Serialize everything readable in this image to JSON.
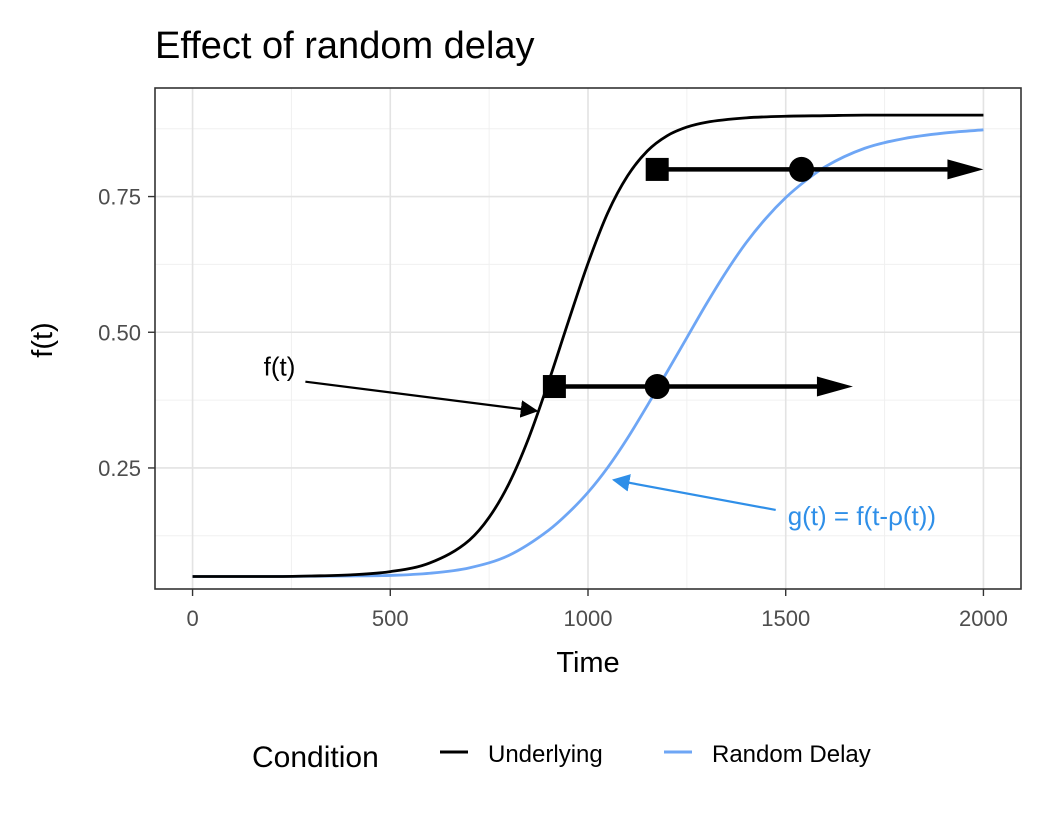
{
  "chart_data": {
    "type": "line",
    "title": "Effect of random delay",
    "xlabel": "Time",
    "ylabel": "f(t)",
    "xlim": [
      -95,
      2095
    ],
    "ylim": [
      0.027,
      0.95
    ],
    "x_ticks": [
      0,
      500,
      1000,
      1500,
      2000
    ],
    "x_tick_labels": [
      "0",
      "500",
      "1000",
      "1500",
      "2000"
    ],
    "y_ticks": [
      0.25,
      0.5,
      0.75
    ],
    "y_tick_labels": [
      "0.25",
      "0.50",
      "0.75"
    ],
    "grid": true,
    "legend": {
      "title": "Condition",
      "position": "bottom",
      "entries": [
        {
          "label": "Underlying",
          "color": "#000000"
        },
        {
          "label": "Random Delay",
          "color": "#6ea6f5"
        }
      ]
    },
    "series": [
      {
        "name": "Underlying",
        "color": "#000000",
        "x": [
          0,
          100,
          200,
          300,
          400,
          500,
          600,
          700,
          750,
          800,
          850,
          900,
          950,
          1000,
          1050,
          1100,
          1150,
          1200,
          1250,
          1300,
          1400,
          1500,
          1600,
          1700,
          1800,
          1900,
          2000
        ],
        "y": [
          0.05,
          0.05,
          0.05,
          0.051,
          0.053,
          0.059,
          0.075,
          0.117,
          0.159,
          0.221,
          0.305,
          0.408,
          0.519,
          0.627,
          0.72,
          0.788,
          0.834,
          0.862,
          0.878,
          0.887,
          0.895,
          0.898,
          0.899,
          0.9,
          0.9,
          0.9,
          0.9
        ]
      },
      {
        "name": "Random Delay",
        "color": "#6ea6f5",
        "x": [
          0,
          200,
          400,
          500,
          600,
          700,
          800,
          900,
          950,
          1000,
          1050,
          1100,
          1150,
          1200,
          1250,
          1300,
          1350,
          1400,
          1450,
          1500,
          1550,
          1600,
          1700,
          1800,
          1900,
          2000
        ],
        "y": [
          0.05,
          0.05,
          0.051,
          0.052,
          0.056,
          0.066,
          0.089,
          0.135,
          0.167,
          0.205,
          0.251,
          0.305,
          0.365,
          0.427,
          0.49,
          0.553,
          0.612,
          0.665,
          0.71,
          0.748,
          0.779,
          0.805,
          0.839,
          0.857,
          0.867,
          0.873
        ]
      }
    ],
    "markers": [
      {
        "shape": "square",
        "x": 915,
        "y": 0.4
      },
      {
        "shape": "circle",
        "x": 1175,
        "y": 0.4
      },
      {
        "shape": "square",
        "x": 1175,
        "y": 0.8
      },
      {
        "shape": "circle",
        "x": 1540,
        "y": 0.8
      }
    ],
    "delay_arrows": [
      {
        "x_start": 915,
        "x_end": 1670,
        "y": 0.4
      },
      {
        "x_start": 1175,
        "x_end": 2000,
        "y": 0.8
      }
    ],
    "annotations": [
      {
        "text": "f(t)",
        "color": "#000000",
        "x": 260,
        "y": 0.42,
        "arrow_to": [
          870,
          0.355
        ]
      },
      {
        "text": "g(t) = f(t-ρ(t))",
        "color": "#2f8fe8",
        "x": 1505,
        "y": 0.145,
        "arrow_to": [
          1065,
          0.228
        ]
      }
    ]
  }
}
